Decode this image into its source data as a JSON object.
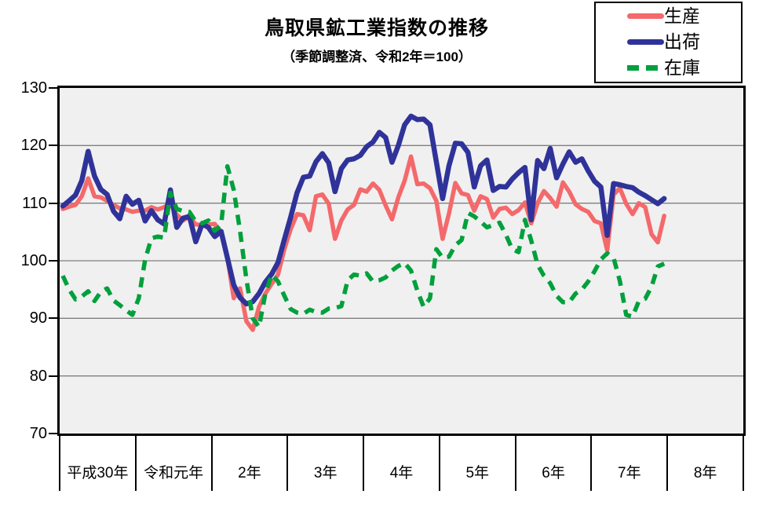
{
  "header": {
    "title": "鳥取県鉱工業指数の推移",
    "subtitle": "（季節調整済、令和2年＝100）"
  },
  "legend": {
    "position": "top-right",
    "items": [
      {
        "label": "生産",
        "color": "#f4696b",
        "style": "solid"
      },
      {
        "label": "出荷",
        "color": "#2f3399",
        "style": "solid"
      },
      {
        "label": "在庫",
        "color": "#00a03c",
        "style": "dashed"
      }
    ]
  },
  "chart_data": {
    "type": "line",
    "title": "鳥取県鉱工業指数の推移",
    "subtitle": "（季節調整済、令和2年＝100）",
    "x_categories": [
      "平成30年",
      "令和元年",
      "2年",
      "3年",
      "4年",
      "5年",
      "6年",
      "7年",
      "8年"
    ],
    "months_per_category": 12,
    "xlabel": "",
    "ylabel": "",
    "ylim": [
      70,
      130
    ],
    "y_ticks": [
      70,
      80,
      90,
      100,
      110,
      120,
      130
    ],
    "grid": true,
    "plot_background": "#f0f0f0",
    "note": "monthly values Jan 2018 - Dec 2025; 8年 (2026) column empty",
    "series": [
      {
        "name": "生産",
        "color": "#f4696b",
        "style": "solid",
        "width": 5.5,
        "values": [
          109.0,
          109.4,
          109.7,
          111.2,
          114.3,
          111.2,
          111.0,
          110.4,
          109.7,
          109.1,
          108.9,
          108.5,
          108.7,
          108.7,
          109.3,
          108.9,
          109.3,
          109.9,
          108.0,
          107.0,
          107.7,
          106.3,
          106.2,
          106.3,
          106.4,
          104.9,
          100.5,
          93.5,
          95.2,
          89.5,
          88.0,
          92.0,
          94.3,
          96.0,
          97.6,
          102.0,
          105.5,
          108.1,
          107.9,
          105.3,
          111.2,
          111.5,
          109.9,
          103.8,
          107.0,
          108.9,
          109.7,
          112.4,
          112.0,
          113.4,
          112.3,
          109.6,
          107.2,
          111.0,
          113.9,
          118.1,
          113.3,
          113.4,
          112.6,
          110.4,
          103.8,
          108.2,
          113.5,
          111.7,
          111.4,
          108.7,
          111.2,
          110.7,
          107.5,
          109.0,
          109.2,
          108.1,
          108.8,
          110.1,
          106.5,
          110.0,
          112.1,
          110.9,
          109.4,
          113.6,
          112.0,
          109.8,
          109.0,
          108.5,
          106.9,
          106.5,
          101.8,
          111.5,
          112.6,
          109.9,
          108.1,
          110.0,
          109.3,
          104.6,
          103.2,
          107.8
        ]
      },
      {
        "name": "出荷",
        "color": "#2f3399",
        "style": "solid",
        "width": 6.5,
        "values": [
          109.5,
          110.4,
          111.4,
          113.9,
          119.0,
          114.7,
          112.4,
          111.5,
          108.6,
          107.3,
          111.2,
          109.8,
          110.5,
          106.9,
          108.7,
          107.1,
          106.4,
          112.3,
          105.8,
          107.4,
          107.7,
          103.3,
          106.4,
          105.8,
          104.2,
          105.1,
          100.5,
          95.8,
          93.6,
          92.5,
          92.9,
          94.3,
          96.3,
          97.7,
          99.7,
          103.7,
          107.6,
          111.8,
          114.5,
          114.7,
          117.2,
          118.6,
          117.0,
          112.0,
          116.0,
          117.5,
          117.7,
          118.3,
          119.8,
          120.6,
          122.3,
          121.4,
          117.1,
          120.0,
          123.6,
          125.1,
          124.5,
          124.6,
          123.6,
          117.2,
          110.8,
          116.5,
          120.4,
          120.3,
          118.8,
          112.8,
          116.5,
          117.5,
          112.2,
          112.9,
          112.8,
          114.2,
          115.3,
          116.2,
          107.1,
          117.4,
          116.0,
          119.5,
          114.4,
          116.8,
          118.9,
          117.1,
          117.7,
          115.6,
          113.8,
          112.8,
          104.4,
          113.4,
          113.2,
          112.9,
          112.7,
          111.9,
          111.3,
          110.6,
          109.9,
          110.8
        ]
      },
      {
        "name": "在庫",
        "color": "#00a03c",
        "style": "dashed",
        "width": 5.5,
        "values": [
          97.4,
          95.0,
          93.3,
          93.8,
          94.7,
          93.0,
          94.6,
          95.2,
          93.1,
          92.3,
          91.4,
          90.6,
          93.5,
          100.2,
          103.9,
          104.2,
          104.0,
          111.8,
          109.0,
          108.6,
          108.5,
          106.8,
          106.5,
          107.0,
          105.2,
          106.2,
          116.4,
          112.3,
          105.2,
          96.8,
          90.0,
          88.5,
          94.3,
          97.6,
          96.4,
          93.9,
          91.6,
          91.0,
          90.8,
          91.5,
          91.1,
          91.0,
          91.7,
          91.8,
          92.1,
          96.6,
          97.6,
          97.4,
          97.8,
          96.4,
          96.6,
          97.1,
          98.3,
          99.1,
          99.6,
          98.3,
          94.8,
          92.0,
          93.5,
          102.0,
          100.5,
          100.7,
          102.7,
          103.6,
          108.3,
          107.7,
          106.8,
          105.8,
          106.2,
          106.6,
          104.5,
          102.0,
          101.5,
          107.1,
          103.5,
          99.3,
          97.4,
          96.1,
          93.9,
          92.8,
          92.8,
          94.3,
          95.0,
          96.4,
          98.2,
          100.2,
          101.3,
          100.5,
          96.5,
          90.6,
          90.3,
          93.0,
          93.4,
          95.5,
          99.0,
          99.5
        ]
      }
    ]
  }
}
